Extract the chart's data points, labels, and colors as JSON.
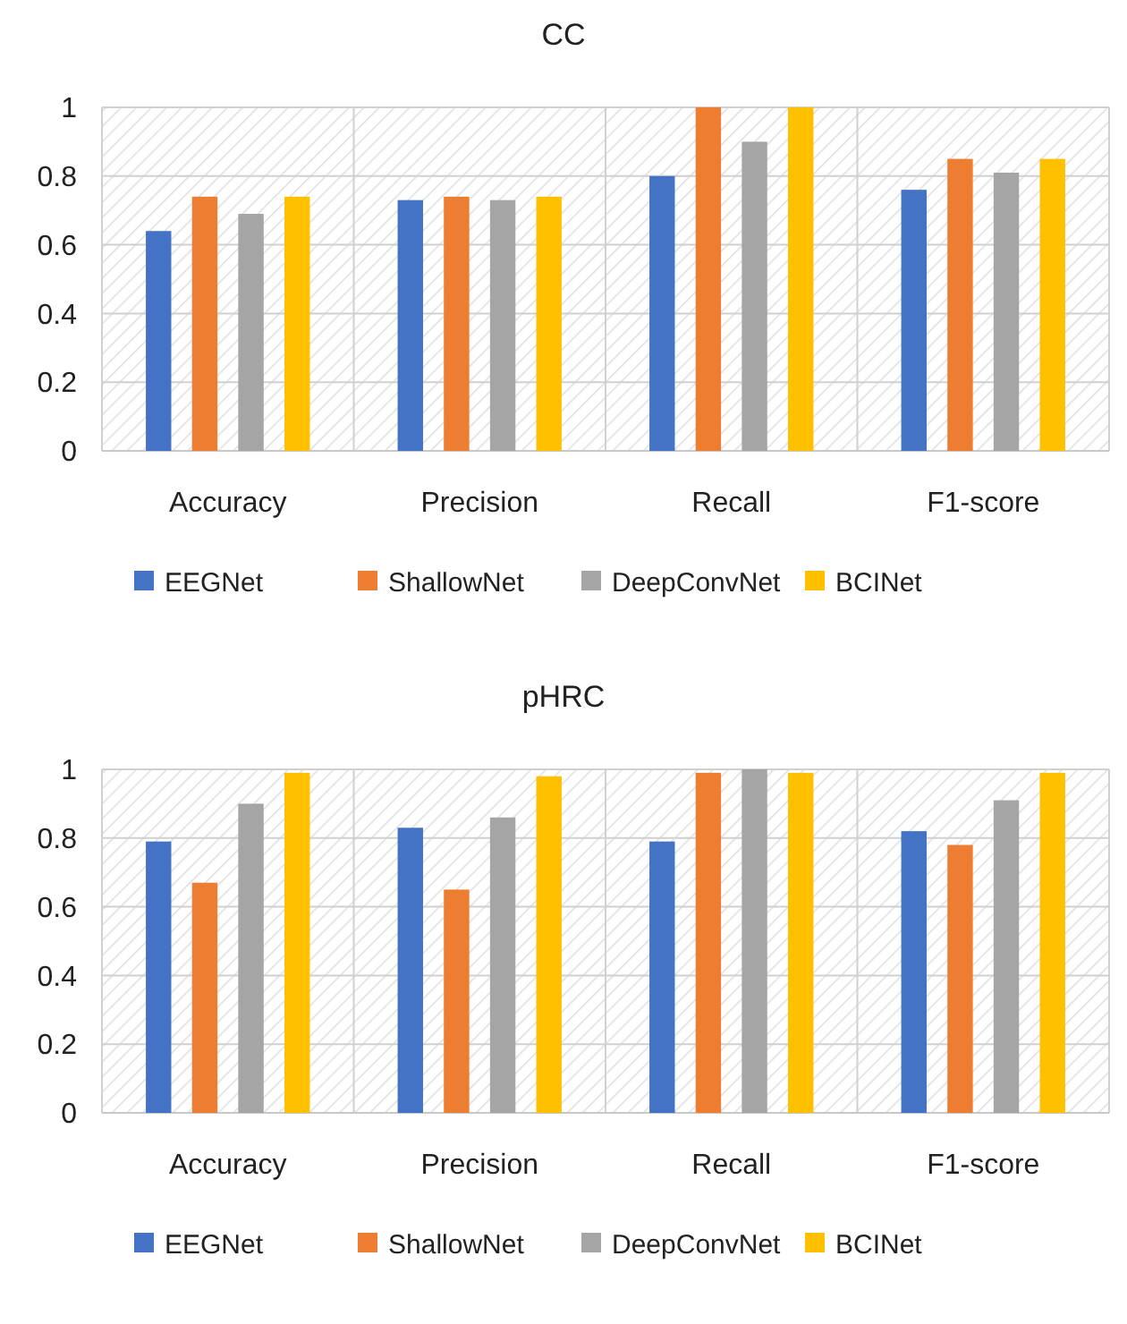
{
  "chart_data": [
    {
      "type": "bar",
      "title": "CC",
      "categories": [
        "Accuracy",
        "Precision",
        "Recall",
        "F1-score"
      ],
      "series": [
        {
          "name": "EEGNet",
          "color": "#4472c4",
          "values": [
            0.64,
            0.73,
            0.8,
            0.76
          ]
        },
        {
          "name": "ShallowNet",
          "color": "#ed7d31",
          "values": [
            0.74,
            0.74,
            1,
            0.85
          ]
        },
        {
          "name": "DeepConvNet",
          "color": "#a5a5a5",
          "values": [
            0.69,
            0.73,
            0.9,
            0.81
          ]
        },
        {
          "name": "BCINet",
          "color": "#ffc000",
          "values": [
            0.74,
            0.74,
            1,
            0.85
          ]
        }
      ],
      "ylim": [
        0,
        1
      ],
      "yticks": [
        0,
        0.2,
        0.4,
        0.6,
        0.8,
        1
      ],
      "grid": true,
      "legend": "bottom"
    },
    {
      "type": "bar",
      "title": "pHRC",
      "categories": [
        "Accuracy",
        "Precision",
        "Recall",
        "F1-score"
      ],
      "series": [
        {
          "name": "EEGNet",
          "color": "#4472c4",
          "values": [
            0.79,
            0.83,
            0.79,
            0.82
          ]
        },
        {
          "name": "ShallowNet",
          "color": "#ed7d31",
          "values": [
            0.67,
            0.65,
            0.99,
            0.78
          ]
        },
        {
          "name": "DeepConvNet",
          "color": "#a5a5a5",
          "values": [
            0.9,
            0.86,
            1,
            0.91
          ]
        },
        {
          "name": "BCINet",
          "color": "#ffc000",
          "values": [
            0.99,
            0.98,
            0.99,
            0.99
          ]
        }
      ],
      "ylim": [
        0,
        1
      ],
      "yticks": [
        0,
        0.2,
        0.4,
        0.6,
        0.8,
        1
      ],
      "grid": true,
      "legend": "bottom"
    }
  ]
}
